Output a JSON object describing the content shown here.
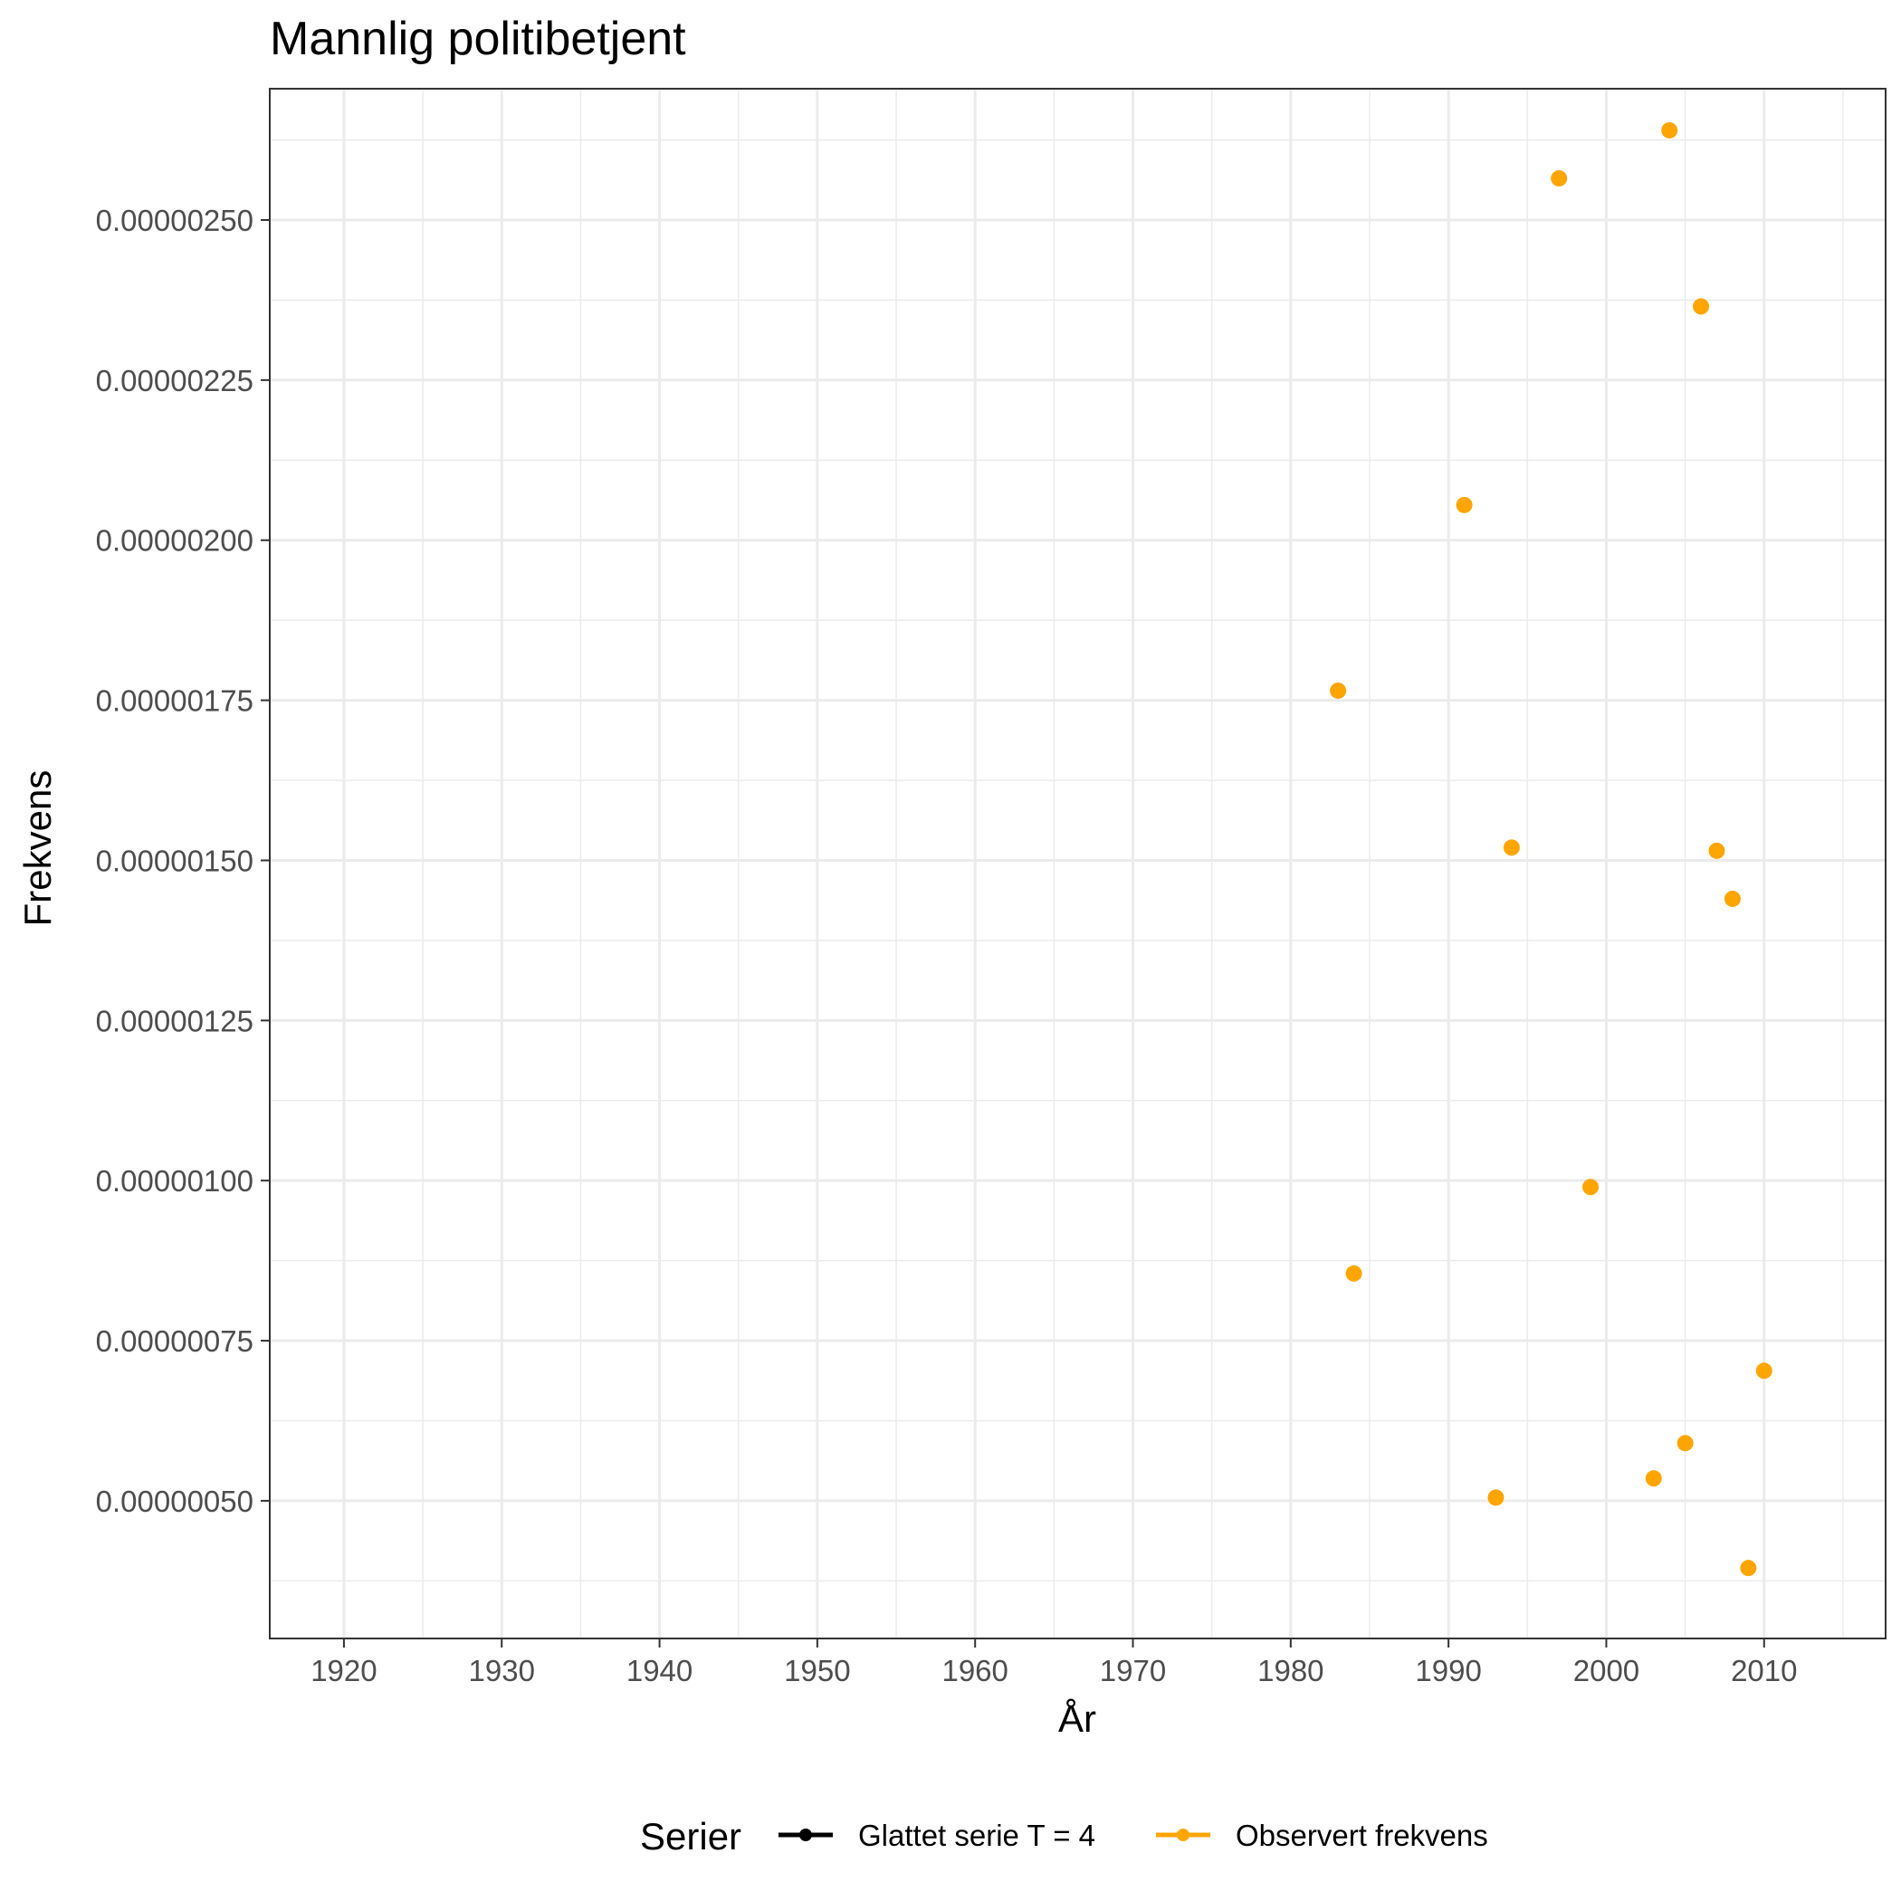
{
  "chart_data": {
    "type": "scatter",
    "title": "Mannlig politibetjent",
    "xlabel": "År",
    "ylabel": "Frekvens",
    "xlim": [
      1915.3,
      2017.7
    ],
    "ylim": [
      2.85e-07,
      2.705e-06
    ],
    "x_ticks": [
      1920,
      1930,
      1940,
      1950,
      1960,
      1970,
      1980,
      1990,
      2000,
      2010
    ],
    "x_tick_labels": [
      "1920",
      "1930",
      "1940",
      "1950",
      "1960",
      "1970",
      "1980",
      "1990",
      "2000",
      "2010"
    ],
    "y_ticks": [
      5e-07,
      7.5e-07,
      1e-06,
      1.25e-06,
      1.5e-06,
      1.75e-06,
      2e-06,
      2.25e-06,
      2.5e-06
    ],
    "y_tick_labels": [
      "0.00000050",
      "0.00000075",
      "0.00000100",
      "0.00000125",
      "0.00000150",
      "0.00000175",
      "0.00000200",
      "0.00000225",
      "0.00000250"
    ],
    "grid": true,
    "legend": {
      "title": "Serier",
      "position": "bottom",
      "entries": [
        {
          "label": "Glattet serie T  = 4",
          "color": "#000000"
        },
        {
          "label": "Observert frekvens",
          "color": "#FFA500"
        }
      ]
    },
    "series": [
      {
        "name": "Glattet serie T  = 4",
        "color": "#000000",
        "x": [],
        "y": []
      },
      {
        "name": "Observert frekvens",
        "color": "#FFA500",
        "x": [
          1983,
          1984,
          1991,
          1993,
          1994,
          1997,
          1999,
          2003,
          2004,
          2005,
          2006,
          2007,
          2008,
          2009,
          2010
        ],
        "y": [
          1.765e-06,
          8.55e-07,
          2.055e-06,
          5.05e-07,
          1.52e-06,
          2.565e-06,
          9.9e-07,
          5.35e-07,
          2.64e-06,
          5.9e-07,
          2.365e-06,
          1.515e-06,
          1.44e-06,
          3.95e-07,
          7.03e-07
        ]
      }
    ]
  }
}
